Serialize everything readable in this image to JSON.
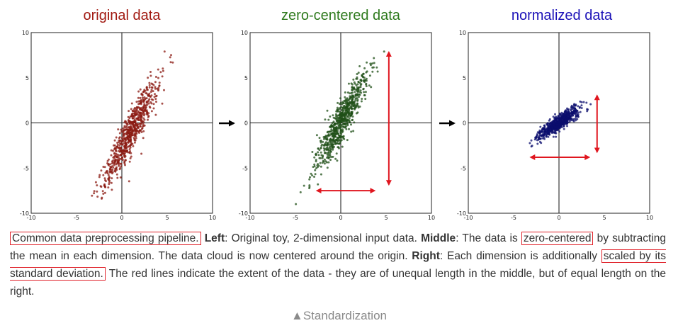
{
  "chart_data": [
    {
      "type": "scatter",
      "title": "original data",
      "title_color": "#a11a12",
      "point_color": "#8b1a12",
      "xlim": [
        -10,
        10
      ],
      "ylim": [
        -10,
        10
      ],
      "xticks": [
        "-10",
        "-5",
        "0",
        "5",
        "10"
      ],
      "yticks": [
        "10",
        "5",
        "0",
        "-5",
        "-10"
      ],
      "cloud": {
        "center": [
          1.0,
          -1.0
        ],
        "std_along": 3.2,
        "std_across": 0.55,
        "angle_deg": 63
      },
      "arrows": []
    },
    {
      "type": "scatter",
      "title": "zero-centered data",
      "title_color": "#2f7a1e",
      "point_color": "#1f4f17",
      "xlim": [
        -10,
        10
      ],
      "ylim": [
        -10,
        10
      ],
      "xticks": [
        "-10",
        "-5",
        "0",
        "5",
        "10"
      ],
      "yticks": [
        "10",
        "5",
        "0",
        "-5",
        "-10"
      ],
      "cloud": {
        "center": [
          0.0,
          0.0
        ],
        "std_along": 3.2,
        "std_across": 0.55,
        "angle_deg": 63
      },
      "arrows": [
        {
          "x1": 5.3,
          "y1": 7.8,
          "x2": 5.3,
          "y2": -6.8,
          "color": "#e0161f"
        },
        {
          "x1": -2.6,
          "y1": -7.5,
          "x2": 3.7,
          "y2": -7.5,
          "color": "#e0161f"
        }
      ]
    },
    {
      "type": "scatter",
      "title": "normalized data",
      "title_color": "#1c12b8",
      "point_color": "#0b0d6e",
      "xlim": [
        -10,
        10
      ],
      "ylim": [
        -10,
        10
      ],
      "xticks": [
        "-10",
        "-5",
        "0",
        "5",
        "10"
      ],
      "yticks": [
        "10",
        "5",
        "0",
        "-5",
        "-10"
      ],
      "cloud": {
        "center": [
          0.0,
          0.0
        ],
        "std_along": 1.35,
        "std_across": 0.35,
        "angle_deg": 35
      },
      "arrows": [
        {
          "x1": 4.2,
          "y1": 3.0,
          "x2": 4.2,
          "y2": -3.2,
          "color": "#e0161f"
        },
        {
          "x1": -3.1,
          "y1": -3.8,
          "x2": 3.3,
          "y2": -3.8,
          "color": "#e0161f"
        }
      ]
    }
  ],
  "arrow_color": "#000000",
  "caption": {
    "hl1": "Common data preprocessing pipeline.",
    "left_bold": "Left",
    "left_text": ": Original toy, 2-dimensional input data. ",
    "middle_bold": "Middle",
    "middle_text": ": The data is ",
    "hl2": "zero-centered",
    "mid_text2": " by subtracting the mean in each dimension. The data cloud is now centered around the origin. ",
    "right_bold": "Right",
    "right_text": ": Each dimension is additionally ",
    "hl3": "scaled by its standard deviation.",
    "tail_text": " The red lines indicate the extent of the data - they are of unequal length in the middle, but of equal length on the right."
  },
  "footer": "▲Standardization"
}
